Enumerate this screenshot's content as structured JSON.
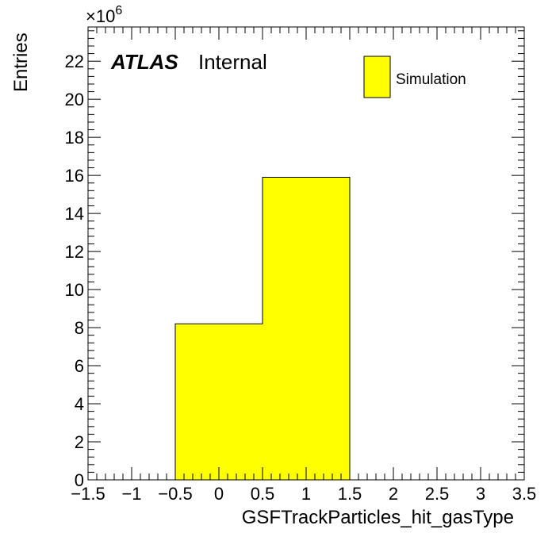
{
  "chart_data": {
    "type": "bar",
    "x": [
      0,
      1
    ],
    "bin_edges": [
      [
        -0.5,
        0.5
      ],
      [
        0.5,
        1.5
      ]
    ],
    "values": [
      8.2,
      15.9
    ],
    "xlabel": "GSFTrackParticles_hit_gasType",
    "ylabel": "Entries",
    "xlim": [
      -1.5,
      3.5
    ],
    "ylim": [
      0,
      23.8
    ],
    "y_multiplier": "×10",
    "y_multiplier_exp": "6",
    "x_ticks": [
      -1.5,
      -1,
      -0.5,
      0,
      0.5,
      1,
      1.5,
      2,
      2.5,
      3,
      3.5
    ],
    "x_tick_labels": [
      "−1.5",
      "−1",
      "−0.5",
      "0",
      "0.5",
      "1",
      "1.5",
      "2",
      "2.5",
      "3",
      "3.5"
    ],
    "y_ticks": [
      0,
      2,
      4,
      6,
      8,
      10,
      12,
      14,
      16,
      18,
      20,
      22
    ],
    "y_tick_labels": [
      "0",
      "2",
      "4",
      "6",
      "8",
      "10",
      "12",
      "14",
      "16",
      "18",
      "20",
      "22"
    ],
    "grid": false,
    "legend": [
      {
        "label": "Simulation",
        "color": "#ffff00"
      }
    ],
    "legend_position": "top-right",
    "annotation": {
      "bold": "ATLAS",
      "normal": "Internal"
    },
    "fill_color": "#ffff00",
    "line_color": "#000000"
  }
}
